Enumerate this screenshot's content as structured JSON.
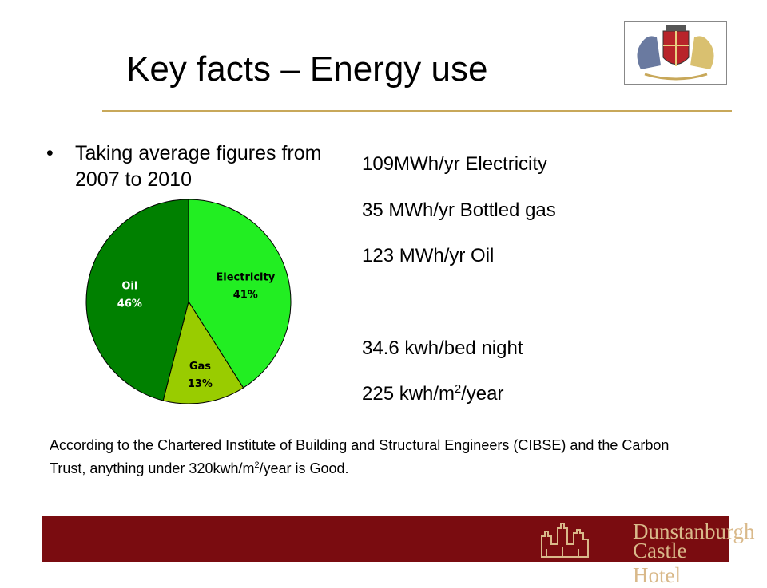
{
  "header": {
    "title": "Key facts – Energy use"
  },
  "bullet": {
    "text": "Taking average figures from 2007 to 2010"
  },
  "facts": {
    "electricity": "109MWh/yr Electricity",
    "gas": "35 MWh/yr Bottled gas",
    "oil": "123 MWh/yr Oil",
    "per_bed": "34.6 kwh/bed night",
    "per_area_prefix": "225 kwh/m",
    "per_area_sup": "2",
    "per_area_suffix": "/year"
  },
  "note": {
    "part1": "According to the Chartered Institute of Building and Structural Engineers (CIBSE) and the Carbon Trust, anything under 320kwh/m",
    "sup": "2",
    "part2": "/year is Good."
  },
  "footer": {
    "logo_line1": "Dunstanburgh",
    "logo_line2": "Castle Hotel"
  },
  "colors": {
    "oil": "#008000",
    "electricity": "#22ee22",
    "gas": "#99cc00",
    "rule": "#c8a85a",
    "footer": "#7a0c10"
  },
  "chart_data": {
    "type": "pie",
    "title": "",
    "slices": [
      {
        "label": "Electricity",
        "value": 41,
        "value_label": "41%"
      },
      {
        "label": "Gas",
        "value": 13,
        "value_label": "13%"
      },
      {
        "label": "Oil",
        "value": 46,
        "value_label": "46%"
      }
    ]
  }
}
